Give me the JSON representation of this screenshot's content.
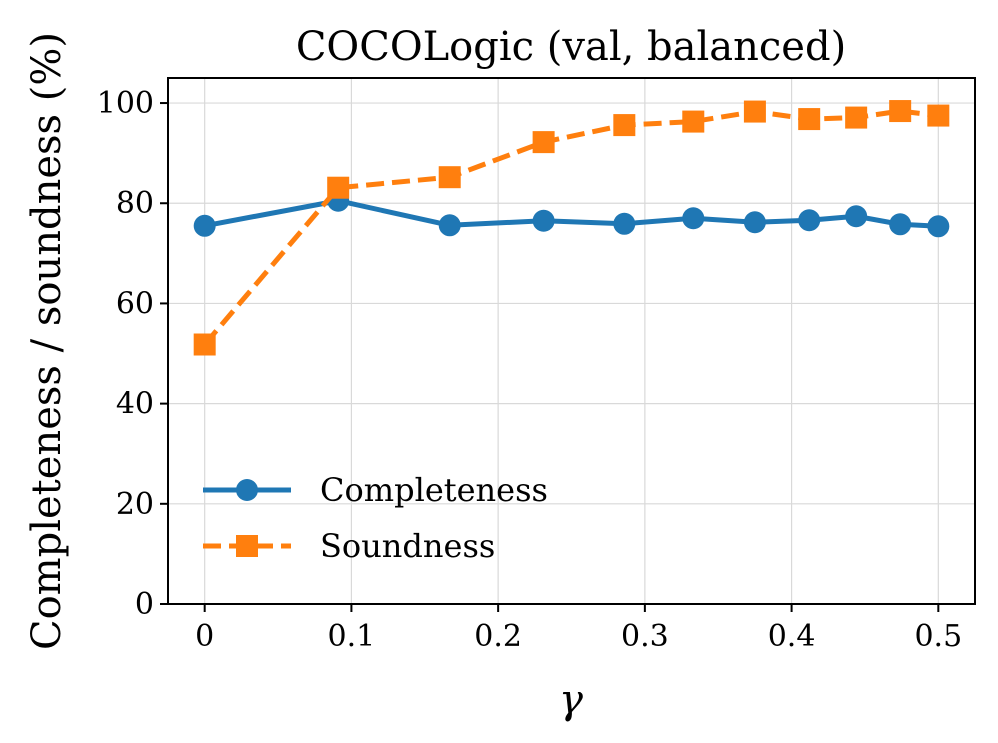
{
  "chart_data": {
    "type": "line",
    "title": "COCOLogic (val, balanced)",
    "xlabel": "γ",
    "ylabel": "Completeness / soundness (%)",
    "xlim": [
      -0.025,
      0.525
    ],
    "ylim": [
      0,
      105
    ],
    "xticks": [
      0,
      0.1,
      0.2,
      0.3,
      0.4,
      0.5
    ],
    "xtick_labels": [
      "0",
      "0.1",
      "0.2",
      "0.3",
      "0.4",
      "0.5"
    ],
    "yticks": [
      0,
      20,
      40,
      60,
      80,
      100
    ],
    "ytick_labels": [
      "0",
      "20",
      "40",
      "60",
      "80",
      "100"
    ],
    "grid": true,
    "legend_position": "lower-left",
    "series": [
      {
        "name": "Completeness",
        "color": "#1f77b4",
        "marker": "circle",
        "linestyle": "solid",
        "x": [
          0,
          0.091,
          0.167,
          0.231,
          0.286,
          0.333,
          0.375,
          0.412,
          0.444,
          0.474,
          0.5
        ],
        "y": [
          75.5,
          80.5,
          75.6,
          76.5,
          75.9,
          77.0,
          76.2,
          76.6,
          77.4,
          75.8,
          75.4
        ]
      },
      {
        "name": "Soundness",
        "color": "#ff7f0e",
        "marker": "square",
        "linestyle": "dashed",
        "x": [
          0,
          0.091,
          0.167,
          0.231,
          0.286,
          0.333,
          0.375,
          0.412,
          0.444,
          0.474,
          0.5
        ],
        "y": [
          51.8,
          83.1,
          85.2,
          92.2,
          95.6,
          96.3,
          98.3,
          96.8,
          97.1,
          98.4,
          97.5
        ]
      }
    ]
  }
}
